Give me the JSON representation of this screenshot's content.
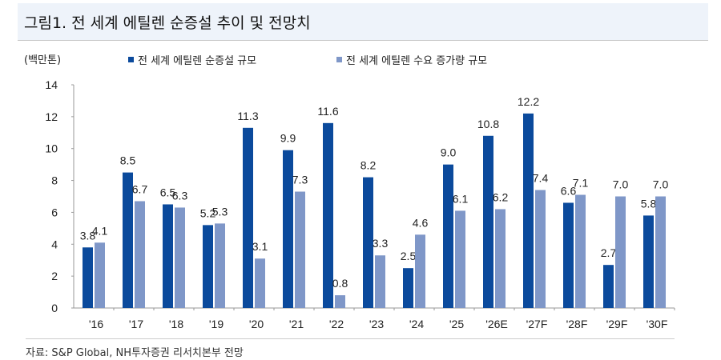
{
  "title": "그림1. 전 세계 에틸렌 순증설 추이 및 전망치",
  "source": "자료: S&P Global, NH투자증권 리서치본부 전망",
  "chart_data": {
    "type": "bar",
    "unit_label": "(백만톤)",
    "categories": [
      "'16",
      "'17",
      "'18",
      "'19",
      "'20",
      "'21",
      "'22",
      "'23",
      "'24",
      "'25",
      "'26E",
      "'27F",
      "'28F",
      "'29F",
      "'30F"
    ],
    "series": [
      {
        "name": "전 세계 에틸렌 순증설 규모",
        "color": "#0b4a9c",
        "values": [
          3.8,
          8.5,
          6.5,
          5.2,
          11.3,
          9.9,
          11.6,
          8.2,
          2.5,
          9.0,
          10.8,
          12.2,
          6.6,
          2.7,
          5.8
        ]
      },
      {
        "name": "전 세계 에틸렌 수요 증가량 규모",
        "color": "#7f97c8",
        "values": [
          4.1,
          6.7,
          6.3,
          5.3,
          3.1,
          7.3,
          0.8,
          3.3,
          4.6,
          6.1,
          6.2,
          7.4,
          7.1,
          7.0,
          7.0
        ]
      }
    ],
    "yticks": [
      0,
      2,
      4,
      6,
      8,
      10,
      12,
      14
    ],
    "ylim": [
      0,
      14
    ],
    "grid": false,
    "legend": "top"
  }
}
